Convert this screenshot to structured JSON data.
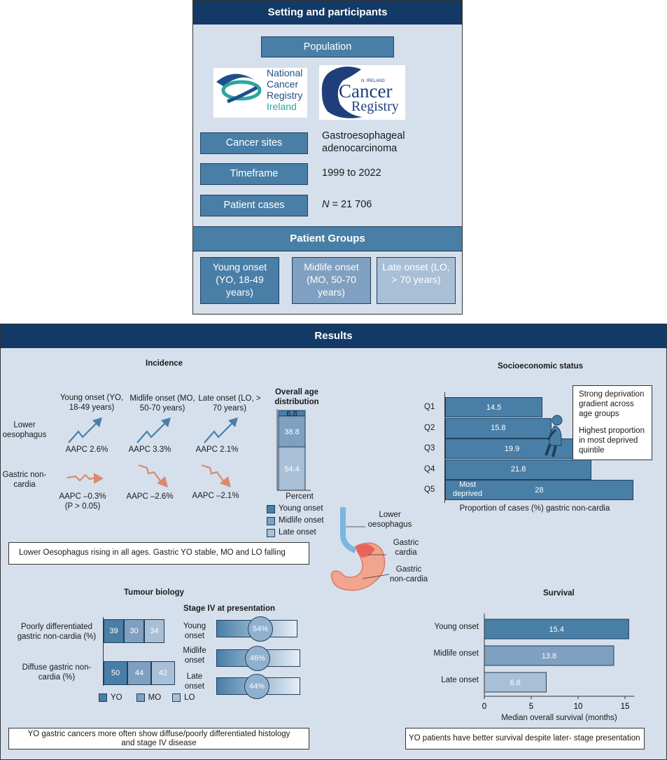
{
  "setting": {
    "title": "Setting and participants",
    "population_label": "Population",
    "logo_ncri_text": [
      "National",
      "Cancer",
      "Registry",
      "Ireland"
    ],
    "logo_ni_small": "N. IRELAND",
    "logo_ni_text": [
      "Cancer",
      "Registry"
    ],
    "rows": [
      {
        "label": "Cancer sites",
        "value": "Gastroesophageal adenocarcinoma"
      },
      {
        "label": "Timeframe",
        "value": "1999 to 2022"
      },
      {
        "label": "Patient cases",
        "value_italic": "N",
        "value": " = 21 706"
      }
    ],
    "groups_title": "Patient Groups",
    "groups": [
      {
        "label": "Young onset (YO, 18-49 years)"
      },
      {
        "label": "Midlife onset (MO, 50-70 years)"
      },
      {
        "label": "Late onset (LO, > 70 years)"
      }
    ]
  },
  "results": {
    "title": "Results",
    "incidence": {
      "title": "Incidence",
      "col_headers": [
        "Young onset (YO, 18-49 years)",
        "Midlife onset (MO, 50-70 years)",
        "Late onset (LO, > 70 years)"
      ],
      "row_labels": [
        "Lower oesophagus",
        "Gastric non-cardia"
      ],
      "lower_aapc": [
        "AAPC 2.6%",
        "AAPC 3.3%",
        "AAPC 2.1%"
      ],
      "gastric_aapc": [
        "AAPC –0.3% (P > 0.05)",
        "AAPC –2.6%",
        "AAPC –2.1%"
      ],
      "summary": "Lower Oesophagus rising in all ages. Gastric YO stable, MO and LO falling"
    },
    "age_distribution": {
      "title": "Overall age distribution",
      "xlabel": "Percent",
      "legend": [
        "Young onset",
        "Midlife onset",
        "Late onset"
      ],
      "colors": [
        "#497fa7",
        "#7fa0c0",
        "#a9bfd6"
      ]
    },
    "anatomy": {
      "labels": [
        "Lower oesophagus",
        "Gastric cardia",
        "Gastric non-cardia"
      ]
    },
    "socioeconomic": {
      "title": "Socioeconomic status",
      "xlabel": "Proportion of cases (%) gastric non-cardia",
      "note_lines": [
        "Strong deprivation gradient across age groups",
        "Highest proportion in most deprived quintile"
      ],
      "q5_extra": "Most deprived"
    },
    "tumour": {
      "title": "Tumour biology",
      "stage_title": "Stage IV at presentation",
      "row_labels": [
        "Poorly differentiated gastric non-cardia (%)",
        "Diffuse gastric non-cardia (%)"
      ],
      "legend": [
        "YO",
        "MO",
        "LO"
      ],
      "stage_labels": [
        "Young onset",
        "Midlife onset",
        "Late onset"
      ],
      "summary": "YO gastric cancers more often show diffuse/poorly differentiated histology and stage IV disease"
    },
    "survival": {
      "title": "Survival",
      "xlabel": "Median overall survival (months)",
      "summary": "YO patients have better survival despite later- stage presentation"
    }
  },
  "chart_data": [
    {
      "type": "bar",
      "title": "Overall age distribution",
      "xlabel": "Percent",
      "categories": [
        "Young onset",
        "Midlife onset",
        "Late onset"
      ],
      "values": [
        6.8,
        38.8,
        54.4
      ],
      "stacked": true
    },
    {
      "type": "bar",
      "title": "Socioeconomic status",
      "xlabel": "Proportion of cases (%) gastric non-cardia",
      "categories": [
        "Q1",
        "Q2",
        "Q3",
        "Q4",
        "Q5"
      ],
      "values": [
        14.5,
        15.8,
        19.9,
        21.8,
        28
      ],
      "orientation": "horizontal"
    },
    {
      "type": "bar",
      "title": "Tumour biology",
      "categories": [
        "Poorly differentiated gastric non-cardia (%)",
        "Diffuse gastric non-cardia (%)"
      ],
      "series": [
        {
          "name": "YO",
          "values": [
            39,
            50
          ]
        },
        {
          "name": "MO",
          "values": [
            30,
            44
          ]
        },
        {
          "name": "LO",
          "values": [
            34,
            42
          ]
        }
      ]
    },
    {
      "type": "bar",
      "title": "Stage IV at presentation",
      "categories": [
        "Young onset",
        "Midlife onset",
        "Late onset"
      ],
      "values": [
        54,
        46,
        44
      ]
    },
    {
      "type": "bar",
      "title": "Survival",
      "xlabel": "Median overall survival (months)",
      "categories": [
        "Young onset",
        "Midlife onset",
        "Late onset"
      ],
      "values": [
        15.4,
        13.8,
        6.6
      ],
      "xlim": [
        0,
        16
      ],
      "xticks": [
        0,
        5,
        10,
        15
      ],
      "orientation": "horizontal"
    }
  ]
}
